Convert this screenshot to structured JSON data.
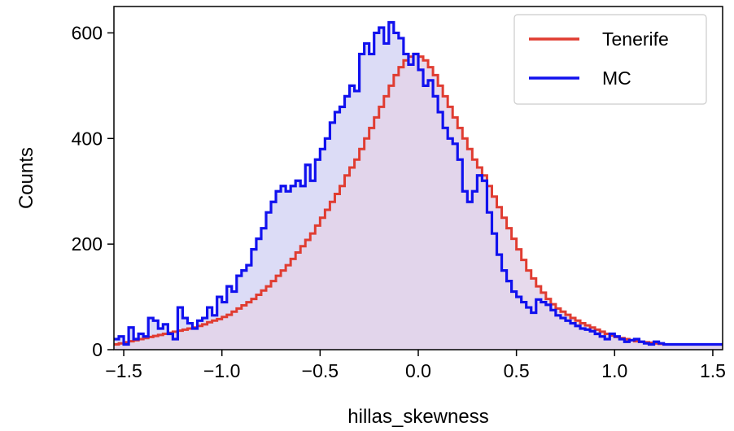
{
  "chart_data": {
    "type": "histogram",
    "xlabel": "hillas_skewness",
    "ylabel": "Counts",
    "xlim": [
      -1.55,
      1.55
    ],
    "ylim": [
      0,
      650
    ],
    "x_ticks": [
      -1.5,
      -1.0,
      -0.5,
      0.0,
      0.5,
      1.0,
      1.5
    ],
    "x_tick_labels": [
      "−1.5",
      "−1.0",
      "−0.5",
      "0.0",
      "0.5",
      "1.0",
      "1.5"
    ],
    "y_ticks": [
      0,
      200,
      400,
      600
    ],
    "y_tick_labels": [
      "0",
      "200",
      "400",
      "600"
    ],
    "grid": false,
    "legend_position": "top-right",
    "bin_edges_start": -1.55,
    "bin_width": 0.025,
    "series": [
      {
        "name": "Tenerife",
        "color": "#e03c31",
        "fill": "#e3d4e9",
        "values": [
          10,
          12,
          14,
          16,
          18,
          20,
          22,
          24,
          26,
          28,
          30,
          32,
          34,
          36,
          38,
          40,
          42,
          45,
          48,
          52,
          55,
          58,
          62,
          66,
          72,
          78,
          84,
          90,
          96,
          104,
          112,
          120,
          130,
          140,
          150,
          160,
          172,
          184,
          196,
          208,
          220,
          235,
          250,
          265,
          280,
          295,
          310,
          330,
          345,
          360,
          380,
          400,
          420,
          440,
          460,
          480,
          500,
          520,
          535,
          548,
          555,
          560,
          555,
          548,
          535,
          520,
          500,
          480,
          460,
          440,
          420,
          400,
          380,
          360,
          345,
          330,
          310,
          290,
          270,
          250,
          230,
          210,
          190,
          170,
          150,
          135,
          120,
          108,
          96,
          86,
          78,
          72,
          66,
          60,
          55,
          50,
          46,
          42,
          38,
          34,
          30,
          27,
          24,
          22,
          20,
          18,
          16,
          15,
          14,
          13,
          12,
          11,
          10,
          10,
          10,
          10,
          10,
          10,
          10,
          10,
          10,
          10,
          10,
          10
        ]
      },
      {
        "name": "MC",
        "color": "#1111ee",
        "fill": "#dcdcf6",
        "values": [
          20,
          25,
          10,
          42,
          20,
          30,
          25,
          60,
          55,
          40,
          48,
          30,
          20,
          80,
          60,
          50,
          40,
          55,
          60,
          80,
          65,
          100,
          90,
          120,
          110,
          140,
          150,
          160,
          190,
          210,
          230,
          260,
          280,
          300,
          310,
          300,
          310,
          320,
          310,
          350,
          320,
          360,
          380,
          400,
          430,
          450,
          460,
          480,
          500,
          490,
          560,
          580,
          560,
          600,
          610,
          580,
          620,
          600,
          590,
          560,
          540,
          560,
          530,
          500,
          510,
          480,
          450,
          420,
          400,
          390,
          360,
          300,
          280,
          300,
          330,
          320,
          260,
          220,
          180,
          150,
          130,
          110,
          100,
          90,
          80,
          70,
          95,
          90,
          85,
          75,
          65,
          60,
          55,
          50,
          45,
          40,
          38,
          35,
          30,
          25,
          20,
          30,
          25,
          20,
          15,
          18,
          20,
          15,
          12,
          10,
          15,
          12,
          10,
          10,
          10,
          10,
          10,
          10,
          10,
          10,
          10,
          10,
          10,
          10
        ]
      }
    ]
  }
}
